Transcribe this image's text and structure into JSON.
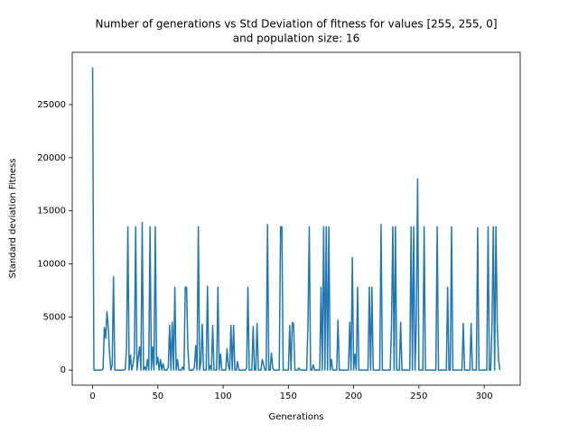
{
  "chart_data": {
    "type": "line",
    "title": [
      "Number of generations vs Std Deviation of fitness for values [255, 255, 0]",
      "and population size: 16"
    ],
    "xlabel": "Generations",
    "ylabel": "Standard deviation Fitness",
    "color": "#1f77b4",
    "xlim": [
      -15.6,
      327.6
    ],
    "ylim": [
      -1425,
      29925
    ],
    "xticks": [
      0,
      50,
      100,
      150,
      200,
      250,
      300
    ],
    "yticks": [
      0,
      5000,
      10000,
      15000,
      20000,
      25000
    ],
    "x": [
      0,
      1,
      2,
      3,
      4,
      5,
      6,
      7,
      8,
      9,
      10,
      11,
      12,
      13,
      14,
      15,
      16,
      17,
      18,
      19,
      20,
      21,
      22,
      23,
      24,
      25,
      26,
      27,
      28,
      29,
      30,
      31,
      32,
      33,
      34,
      35,
      36,
      37,
      38,
      39,
      40,
      41,
      42,
      43,
      44,
      45,
      46,
      47,
      48,
      49,
      50,
      51,
      52,
      53,
      54,
      55,
      56,
      57,
      58,
      59,
      60,
      61,
      62,
      63,
      64,
      65,
      66,
      67,
      68,
      69,
      70,
      71,
      72,
      73,
      74,
      75,
      76,
      77,
      78,
      79,
      80,
      81,
      82,
      83,
      84,
      85,
      86,
      87,
      88,
      89,
      90,
      91,
      92,
      93,
      94,
      95,
      96,
      97,
      98,
      99,
      100,
      101,
      102,
      103,
      104,
      105,
      106,
      107,
      108,
      109,
      110,
      111,
      112,
      113,
      114,
      115,
      116,
      117,
      118,
      119,
      120,
      121,
      122,
      123,
      124,
      125,
      126,
      127,
      128,
      129,
      130,
      131,
      132,
      133,
      134,
      135,
      136,
      137,
      138,
      139,
      140,
      141,
      142,
      143,
      144,
      145,
      146,
      147,
      148,
      149,
      150,
      151,
      152,
      153,
      154,
      155,
      156,
      157,
      158,
      159,
      160,
      161,
      162,
      163,
      164,
      165,
      166,
      167,
      168,
      169,
      170,
      171,
      172,
      173,
      174,
      175,
      176,
      177,
      178,
      179,
      180,
      181,
      182,
      183,
      184,
      185,
      186,
      187,
      188,
      189,
      190,
      191,
      192,
      193,
      194,
      195,
      196,
      197,
      198,
      199,
      200,
      201,
      202,
      203,
      204,
      205,
      206,
      207,
      208,
      209,
      210,
      211,
      212,
      213,
      214,
      215,
      216,
      217,
      218,
      219,
      220,
      221,
      222,
      223,
      224,
      225,
      226,
      227,
      228,
      229,
      230,
      231,
      232,
      233,
      234,
      235,
      236,
      237,
      238,
      239,
      240,
      241,
      242,
      243,
      244,
      245,
      246,
      247,
      248,
      249,
      250,
      251,
      252,
      253,
      254,
      255,
      256,
      257,
      258,
      259,
      260,
      261,
      262,
      263,
      264,
      265,
      266,
      267,
      268,
      269,
      270,
      271,
      272,
      273,
      274,
      275,
      276,
      277,
      278,
      279,
      280,
      281,
      282,
      283,
      284,
      285,
      286,
      287,
      288,
      289,
      290,
      291,
      292,
      293,
      294,
      295,
      296,
      297,
      298,
      299,
      300,
      301,
      302,
      303,
      304,
      305,
      306,
      307,
      308,
      309,
      310,
      311,
      312
    ],
    "values": [
      28500,
      0,
      0,
      0,
      0,
      0,
      0,
      0,
      100,
      4000,
      3000,
      5500,
      4000,
      1500,
      0,
      500,
      8800,
      0,
      0,
      0,
      0,
      0,
      0,
      0,
      0,
      100,
      2000,
      13500,
      0,
      1400,
      0,
      500,
      1500,
      13500,
      0,
      1200,
      2200,
      0,
      13900,
      0,
      300,
      0,
      1000,
      0,
      13500,
      0,
      2200,
      0,
      13500,
      500,
      1200,
      0,
      1000,
      0,
      600,
      0,
      0,
      0,
      300,
      4200,
      0,
      4500,
      0,
      7800,
      0,
      1000,
      0,
      0,
      0,
      300,
      0,
      7800,
      7800,
      2000,
      0,
      0,
      0,
      0,
      300,
      2300,
      0,
      13500,
      0,
      800,
      4300,
      0,
      0,
      0,
      7900,
      0,
      400,
      0,
      4200,
      0,
      0,
      0,
      7800,
      0,
      1500,
      0,
      0,
      0,
      0,
      2000,
      400,
      0,
      4200,
      0,
      4200,
      0,
      0,
      800,
      0,
      0,
      0,
      0,
      0,
      0,
      200,
      7800,
      0,
      0,
      0,
      4100,
      0,
      0,
      4400,
      0,
      0,
      0,
      1000,
      500,
      0,
      0,
      13700,
      0,
      0,
      1600,
      200,
      0,
      0,
      0,
      0,
      0,
      13500,
      13500,
      0,
      0,
      0,
      0,
      0,
      4200,
      0,
      4500,
      4300,
      0,
      0,
      0,
      200,
      0,
      0,
      0,
      0,
      0,
      0,
      4200,
      13500,
      0,
      0,
      500,
      0,
      0,
      0,
      0,
      0,
      7800,
      0,
      13500,
      0,
      13500,
      0,
      13500,
      0,
      1000,
      0,
      0,
      0,
      0,
      4700,
      0,
      0,
      0,
      0,
      0,
      0,
      0,
      0,
      4500,
      0,
      10600,
      0,
      1500,
      0,
      7800,
      0,
      0,
      0,
      0,
      0,
      0,
      0,
      0,
      7800,
      0,
      7800,
      0,
      0,
      0,
      0,
      0,
      0,
      13700,
      0,
      0,
      0,
      0,
      0,
      0,
      0,
      4200,
      13500,
      0,
      13500,
      0,
      0,
      0,
      4500,
      0,
      0,
      0,
      0,
      0,
      0,
      0,
      13500,
      0,
      13500,
      0,
      4500,
      18000,
      0,
      0,
      0,
      0,
      13500,
      0,
      0,
      0,
      0,
      0,
      0,
      0,
      0,
      0,
      13500,
      0,
      0,
      0,
      0,
      0,
      0,
      0,
      7800,
      0,
      0,
      13500,
      0,
      0,
      0,
      0,
      0,
      0,
      0,
      0,
      4400,
      0,
      0,
      0,
      0,
      0,
      4400,
      0,
      0,
      0,
      0,
      13400,
      0,
      0,
      0,
      0,
      0,
      0,
      0,
      13500,
      0,
      0,
      4400,
      13500,
      0,
      13500,
      4400,
      1000,
      0
    ]
  }
}
